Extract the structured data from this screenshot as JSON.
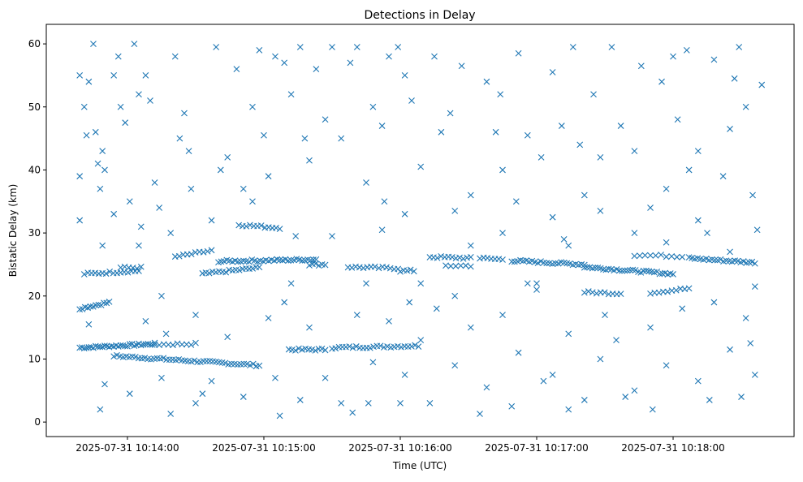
{
  "chart_data": {
    "type": "scatter",
    "title": "Detections in Delay",
    "xlabel": "Time (UTC)",
    "ylabel": "Bistatic Delay (km)",
    "x_unit": "seconds after 2025-07-31 10:13:00 UTC",
    "xlim": [
      24.3,
      353.2
    ],
    "ylim": [
      -2.3,
      63.1
    ],
    "grid": false,
    "marker": "x",
    "color": "#1f77b4",
    "xticks": [
      {
        "value": 60,
        "label": "2025-07-31 10:14:00"
      },
      {
        "value": 120,
        "label": "2025-07-31 10:15:00"
      },
      {
        "value": 180,
        "label": "2025-07-31 10:16:00"
      },
      {
        "value": 240,
        "label": "2025-07-31 10:17:00"
      },
      {
        "value": 300,
        "label": "2025-07-31 10:18:00"
      }
    ],
    "yticks": [
      {
        "value": 0,
        "label": "0"
      },
      {
        "value": 10,
        "label": "10"
      },
      {
        "value": 20,
        "label": "20"
      },
      {
        "value": 30,
        "label": "30"
      },
      {
        "value": 40,
        "label": "40"
      },
      {
        "value": 50,
        "label": "50"
      },
      {
        "value": 60,
        "label": "60"
      }
    ],
    "tracks": [
      {
        "t0": 39,
        "t1": 72,
        "d0": 11.8,
        "d1": 12.4,
        "n": 34
      },
      {
        "t0": 72,
        "t1": 90,
        "d0": 12.3,
        "d1": 12.4,
        "n": 10
      },
      {
        "t0": 54,
        "t1": 118,
        "d0": 10.5,
        "d1": 9.0,
        "n": 48
      },
      {
        "t0": 131,
        "t1": 147,
        "d0": 11.5,
        "d1": 11.5,
        "n": 12
      },
      {
        "t0": 150,
        "t1": 188,
        "d0": 11.8,
        "d1": 12.1,
        "n": 26
      },
      {
        "t0": 39,
        "t1": 52,
        "d0": 18.0,
        "d1": 19.0,
        "n": 12
      },
      {
        "t0": 41,
        "t1": 65,
        "d0": 23.5,
        "d1": 24.0,
        "n": 16
      },
      {
        "t0": 57,
        "t1": 66,
        "d0": 24.5,
        "d1": 24.5,
        "n": 6
      },
      {
        "t0": 81,
        "t1": 97,
        "d0": 26.2,
        "d1": 27.2,
        "n": 10
      },
      {
        "t0": 93,
        "t1": 118,
        "d0": 23.5,
        "d1": 24.5,
        "n": 18
      },
      {
        "t0": 100,
        "t1": 143,
        "d0": 25.5,
        "d1": 25.8,
        "n": 36
      },
      {
        "t0": 109,
        "t1": 127,
        "d0": 31.3,
        "d1": 30.8,
        "n": 12
      },
      {
        "t0": 140,
        "t1": 147,
        "d0": 25.0,
        "d1": 25.0,
        "n": 6
      },
      {
        "t0": 157,
        "t1": 179,
        "d0": 24.6,
        "d1": 24.4,
        "n": 14
      },
      {
        "t0": 180,
        "t1": 186,
        "d0": 24.0,
        "d1": 24.0,
        "n": 5
      },
      {
        "t0": 193,
        "t1": 211,
        "d0": 26.2,
        "d1": 26.0,
        "n": 12
      },
      {
        "t0": 200,
        "t1": 211,
        "d0": 24.8,
        "d1": 24.8,
        "n": 6
      },
      {
        "t0": 215,
        "t1": 225,
        "d0": 26.0,
        "d1": 25.8,
        "n": 7
      },
      {
        "t0": 229,
        "t1": 261,
        "d0": 25.6,
        "d1": 25.0,
        "n": 26
      },
      {
        "t0": 261,
        "t1": 300,
        "d0": 24.6,
        "d1": 23.5,
        "n": 34
      },
      {
        "t0": 261,
        "t1": 277,
        "d0": 20.6,
        "d1": 20.4,
        "n": 10
      },
      {
        "t0": 283,
        "t1": 304,
        "d0": 26.5,
        "d1": 26.3,
        "n": 10
      },
      {
        "t0": 290,
        "t1": 307,
        "d0": 20.5,
        "d1": 21.2,
        "n": 10
      },
      {
        "t0": 307,
        "t1": 336,
        "d0": 26.0,
        "d1": 25.3,
        "n": 24
      }
    ],
    "points": [
      [
        39,
        55
      ],
      [
        39,
        39
      ],
      [
        39,
        32
      ],
      [
        41,
        50
      ],
      [
        42,
        45.5
      ],
      [
        43,
        54
      ],
      [
        45,
        60
      ],
      [
        46,
        46
      ],
      [
        47,
        41
      ],
      [
        48,
        37
      ],
      [
        49,
        43
      ],
      [
        50,
        40
      ],
      [
        48,
        2
      ],
      [
        49,
        28
      ],
      [
        54,
        55
      ],
      [
        56,
        58
      ],
      [
        57,
        50
      ],
      [
        59,
        47.5
      ],
      [
        61,
        35
      ],
      [
        63,
        60
      ],
      [
        65,
        52
      ],
      [
        66,
        31
      ],
      [
        68,
        55
      ],
      [
        70,
        51
      ],
      [
        72,
        38
      ],
      [
        74,
        34
      ],
      [
        75,
        20
      ],
      [
        77,
        14
      ],
      [
        79,
        1.3
      ],
      [
        81,
        58
      ],
      [
        83,
        45
      ],
      [
        85,
        49
      ],
      [
        87,
        43
      ],
      [
        88,
        37
      ],
      [
        90,
        3
      ],
      [
        93,
        4.5
      ],
      [
        99,
        59.5
      ],
      [
        101,
        40
      ],
      [
        104,
        42
      ],
      [
        108,
        56
      ],
      [
        111,
        37
      ],
      [
        115,
        50
      ],
      [
        118,
        59
      ],
      [
        120,
        45.5
      ],
      [
        122,
        39
      ],
      [
        125,
        58
      ],
      [
        127,
        1
      ],
      [
        129,
        57
      ],
      [
        132,
        52
      ],
      [
        134,
        29.5
      ],
      [
        136,
        59.5
      ],
      [
        138,
        45
      ],
      [
        140,
        41.5
      ],
      [
        143,
        56
      ],
      [
        147,
        48
      ],
      [
        150,
        59.5
      ],
      [
        154,
        45
      ],
      [
        158,
        57
      ],
      [
        159,
        1.5
      ],
      [
        161,
        59.5
      ],
      [
        165,
        38
      ],
      [
        166,
        3
      ],
      [
        168,
        50
      ],
      [
        172,
        47
      ],
      [
        173,
        35
      ],
      [
        175,
        58
      ],
      [
        179,
        59.5
      ],
      [
        180,
        3
      ],
      [
        182,
        55
      ],
      [
        184,
        19
      ],
      [
        185,
        51
      ],
      [
        189,
        40.5
      ],
      [
        193,
        3
      ],
      [
        195,
        58
      ],
      [
        198,
        46
      ],
      [
        202,
        49
      ],
      [
        204,
        20
      ],
      [
        207,
        56.5
      ],
      [
        211,
        36
      ],
      [
        215,
        1.3
      ],
      [
        218,
        54
      ],
      [
        222,
        46
      ],
      [
        224,
        52
      ],
      [
        225,
        40
      ],
      [
        229,
        2.5
      ],
      [
        231,
        35
      ],
      [
        232,
        58.5
      ],
      [
        236,
        45.5
      ],
      [
        240,
        22
      ],
      [
        242,
        42
      ],
      [
        243,
        6.5
      ],
      [
        247,
        55.5
      ],
      [
        251,
        47
      ],
      [
        252,
        29
      ],
      [
        254,
        2
      ],
      [
        256,
        59.5
      ],
      [
        259,
        44
      ],
      [
        261,
        36
      ],
      [
        265,
        52
      ],
      [
        268,
        42
      ],
      [
        270,
        17
      ],
      [
        273,
        59.5
      ],
      [
        277,
        47
      ],
      [
        279,
        4
      ],
      [
        283,
        43
      ],
      [
        286,
        56.5
      ],
      [
        290,
        34
      ],
      [
        291,
        2
      ],
      [
        295,
        54
      ],
      [
        297,
        37
      ],
      [
        300,
        58
      ],
      [
        302,
        48
      ],
      [
        306,
        59
      ],
      [
        307,
        40
      ],
      [
        311,
        43
      ],
      [
        315,
        30
      ],
      [
        316,
        3.5
      ],
      [
        318,
        57.5
      ],
      [
        322,
        39
      ],
      [
        325,
        46.5
      ],
      [
        327,
        54.5
      ],
      [
        329,
        59.5
      ],
      [
        332,
        50
      ],
      [
        335,
        36
      ],
      [
        337,
        30.5
      ],
      [
        339,
        53.5
      ],
      [
        336,
        21.5
      ],
      [
        334,
        12.5
      ],
      [
        330,
        4
      ],
      [
        336,
        7.5
      ],
      [
        43,
        15.5
      ],
      [
        50,
        6
      ],
      [
        61,
        4.5
      ],
      [
        68,
        16
      ],
      [
        75,
        7
      ],
      [
        90,
        17
      ],
      [
        97,
        6.5
      ],
      [
        104,
        13.5
      ],
      [
        111,
        4
      ],
      [
        122,
        16.5
      ],
      [
        125,
        7
      ],
      [
        129,
        19
      ],
      [
        136,
        3.5
      ],
      [
        140,
        15
      ],
      [
        147,
        7
      ],
      [
        154,
        3
      ],
      [
        161,
        17
      ],
      [
        168,
        9.5
      ],
      [
        175,
        16
      ],
      [
        182,
        7.5
      ],
      [
        189,
        13
      ],
      [
        196,
        18
      ],
      [
        204,
        9
      ],
      [
        211,
        15
      ],
      [
        218,
        5.5
      ],
      [
        225,
        17
      ],
      [
        232,
        11
      ],
      [
        240,
        21
      ],
      [
        247,
        7.5
      ],
      [
        254,
        14
      ],
      [
        261,
        3.5
      ],
      [
        268,
        10
      ],
      [
        275,
        13
      ],
      [
        283,
        5
      ],
      [
        290,
        15
      ],
      [
        297,
        9
      ],
      [
        304,
        18
      ],
      [
        311,
        6.5
      ],
      [
        318,
        19
      ],
      [
        325,
        11.5
      ],
      [
        332,
        16.5
      ],
      [
        54,
        33
      ],
      [
        65,
        28
      ],
      [
        79,
        30
      ],
      [
        97,
        32
      ],
      [
        115,
        35
      ],
      [
        132,
        22
      ],
      [
        150,
        29.5
      ],
      [
        165,
        22
      ],
      [
        172,
        30.5
      ],
      [
        182,
        33
      ],
      [
        189,
        22
      ],
      [
        204,
        33.5
      ],
      [
        211,
        28
      ],
      [
        225,
        30
      ],
      [
        236,
        22
      ],
      [
        247,
        32.5
      ],
      [
        254,
        28
      ],
      [
        268,
        33.5
      ],
      [
        283,
        30
      ],
      [
        297,
        28.5
      ],
      [
        311,
        32
      ],
      [
        325,
        27
      ]
    ]
  }
}
